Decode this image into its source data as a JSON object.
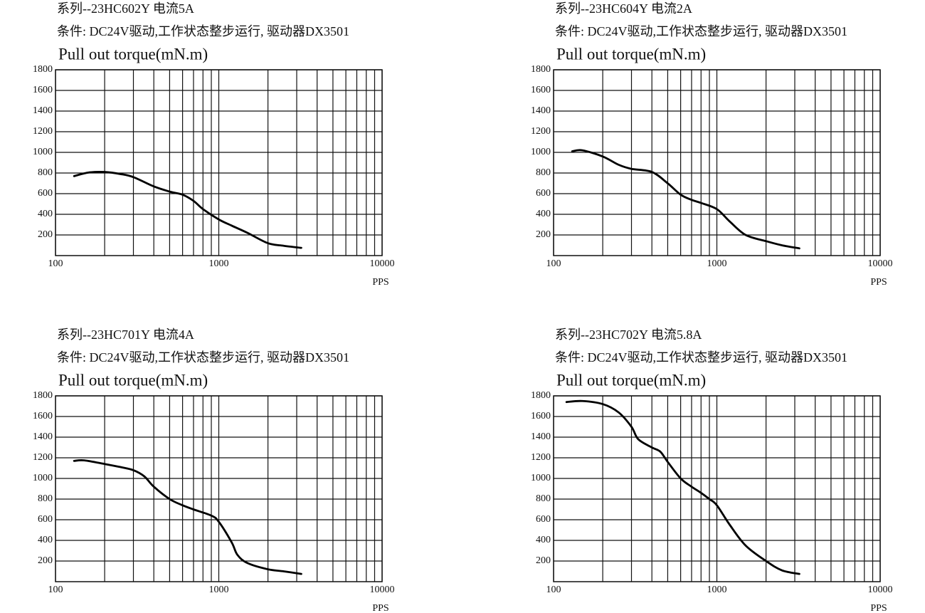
{
  "chart_data": [
    {
      "type": "line",
      "title": "系列--23HC602Y 电流5A",
      "subtitle": "条件: DC24V驱动,工作状态整步运行, 驱动器DX3501",
      "ylabel": "Pull out torque(mN.m)",
      "xlabel": "PPS",
      "xscale": "log",
      "xlim": [
        100,
        10000
      ],
      "xticks": [
        100,
        1000,
        10000
      ],
      "x_minor_ticks": [
        200,
        300,
        400,
        500,
        600,
        700,
        800,
        900,
        2000,
        3000,
        4000,
        5000,
        6000,
        7000,
        8000,
        9000
      ],
      "ylim": [
        0,
        1800
      ],
      "yticks": [
        200,
        400,
        600,
        800,
        1000,
        1200,
        1400,
        1600,
        1800
      ],
      "grid": true,
      "color": "#000000",
      "x": [
        130,
        160,
        200,
        250,
        300,
        400,
        500,
        600,
        700,
        800,
        1000,
        1200,
        1500,
        2000,
        2500,
        3200
      ],
      "values": [
        770,
        805,
        810,
        790,
        760,
        670,
        620,
        590,
        530,
        450,
        350,
        290,
        220,
        120,
        95,
        75
      ]
    },
    {
      "type": "line",
      "title": "系列--23HC604Y 电流2A",
      "subtitle": "条件: DC24V驱动,工作状态整步运行, 驱动器DX3501",
      "ylabel": "Pull out torque(mN.m)",
      "xlabel": "PPS",
      "xscale": "log",
      "xlim": [
        100,
        10000
      ],
      "xticks": [
        100,
        1000,
        10000
      ],
      "x_minor_ticks": [
        200,
        300,
        400,
        500,
        600,
        700,
        800,
        900,
        2000,
        3000,
        4000,
        5000,
        6000,
        7000,
        8000,
        9000
      ],
      "ylim": [
        0,
        1800
      ],
      "yticks": [
        200,
        400,
        600,
        800,
        1000,
        1200,
        1400,
        1600,
        1800
      ],
      "grid": true,
      "color": "#000000",
      "x": [
        130,
        150,
        200,
        250,
        300,
        400,
        500,
        600,
        700,
        800,
        1000,
        1200,
        1500,
        2000,
        2500,
        3200
      ],
      "values": [
        1010,
        1020,
        960,
        880,
        840,
        810,
        700,
        590,
        540,
        510,
        450,
        330,
        200,
        140,
        100,
        70
      ]
    },
    {
      "type": "line",
      "title": "系列--23HC701Y 电流4A",
      "subtitle": "条件: DC24V驱动,工作状态整步运行, 驱动器DX3501",
      "ylabel": "Pull out torque(mN.m)",
      "xlabel": "PPS",
      "xscale": "log",
      "xlim": [
        100,
        10000
      ],
      "xticks": [
        100,
        1000,
        10000
      ],
      "x_minor_ticks": [
        200,
        300,
        400,
        500,
        600,
        700,
        800,
        900,
        2000,
        3000,
        4000,
        5000,
        6000,
        7000,
        8000,
        9000
      ],
      "ylim": [
        0,
        1800
      ],
      "yticks": [
        200,
        400,
        600,
        800,
        1000,
        1200,
        1400,
        1600,
        1800
      ],
      "grid": true,
      "color": "#000000",
      "x": [
        130,
        150,
        200,
        250,
        300,
        350,
        400,
        500,
        600,
        700,
        900,
        1000,
        1200,
        1300,
        1500,
        2000,
        2500,
        3200
      ],
      "values": [
        1170,
        1175,
        1140,
        1110,
        1080,
        1020,
        920,
        800,
        740,
        700,
        640,
        580,
        380,
        260,
        180,
        120,
        100,
        75
      ]
    },
    {
      "type": "line",
      "title": "系列--23HC702Y 电流5.8A",
      "subtitle": "条件: DC24V驱动,工作状态整步运行, 驱动器DX3501",
      "ylabel": "Pull out torque(mN.m)",
      "xlabel": "PPS",
      "xscale": "log",
      "xlim": [
        100,
        10000
      ],
      "xticks": [
        100,
        1000,
        10000
      ],
      "x_minor_ticks": [
        200,
        300,
        400,
        500,
        600,
        700,
        800,
        900,
        2000,
        3000,
        4000,
        5000,
        6000,
        7000,
        8000,
        9000
      ],
      "ylim": [
        0,
        1800
      ],
      "yticks": [
        200,
        400,
        600,
        800,
        1000,
        1200,
        1400,
        1600,
        1800
      ],
      "grid": true,
      "color": "#000000",
      "x": [
        120,
        150,
        200,
        250,
        300,
        330,
        400,
        450,
        500,
        600,
        700,
        800,
        900,
        1000,
        1200,
        1500,
        2000,
        2500,
        3200
      ],
      "values": [
        1740,
        1750,
        1720,
        1640,
        1500,
        1380,
        1300,
        1260,
        1160,
        1000,
        920,
        860,
        800,
        740,
        550,
        350,
        200,
        110,
        75
      ]
    }
  ]
}
